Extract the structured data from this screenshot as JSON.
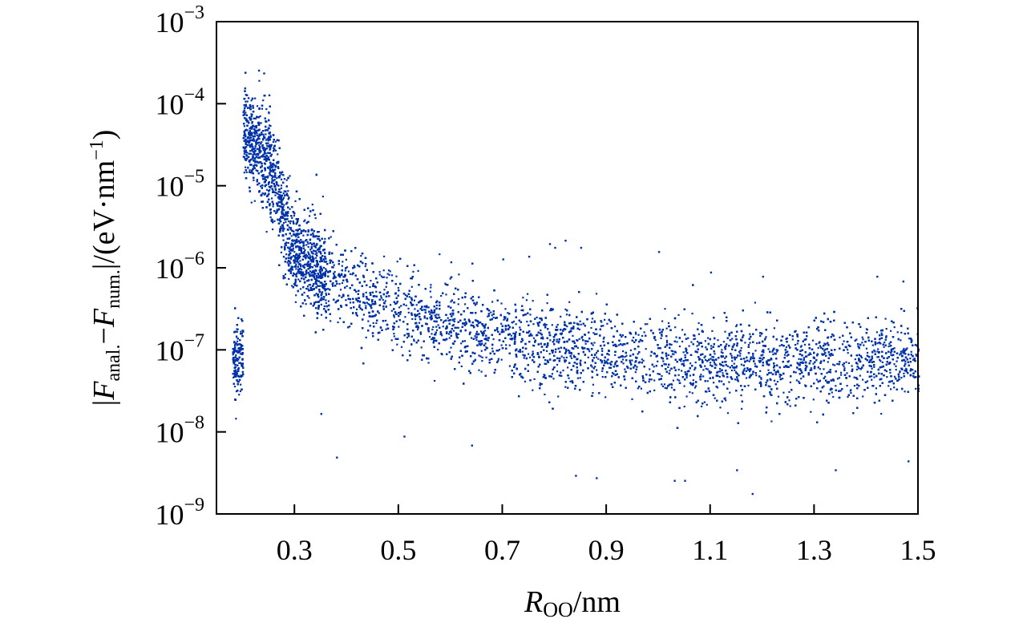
{
  "chart_data": {
    "type": "scatter",
    "title": "",
    "xlabel": {
      "var": "R",
      "sub": "OO",
      "unit": "/nm"
    },
    "ylabel": {
      "bar": "|",
      "f1": "F",
      "sub1": "anal.",
      "minus": "−",
      "f2": "F",
      "sub2": "num.",
      "unit_open": "/(eV·nm",
      "unit_exp": "−1",
      "unit_close": ")"
    },
    "xlim": [
      0.15,
      1.5
    ],
    "ylim": [
      1e-09,
      0.001
    ],
    "yscale": "log",
    "grid": false,
    "legend": "none",
    "marker_color": "#0033aa",
    "x_ticks": [
      "0.3",
      "0.5",
      "0.7",
      "0.9",
      "1.1",
      "1.3",
      "1.5"
    ],
    "y_ticks": [
      {
        "base": "10",
        "exp": "-9"
      },
      {
        "base": "10",
        "exp": "-8"
      },
      {
        "base": "10",
        "exp": "-7"
      },
      {
        "base": "10",
        "exp": "-6"
      },
      {
        "base": "10",
        "exp": "-5"
      },
      {
        "base": "10",
        "exp": "-4"
      },
      {
        "base": "10",
        "exp": "-3"
      }
    ],
    "series": [
      {
        "band": [
          {
            "x": 0.2,
            "median": 5e-05,
            "spread_dex": 0.45
          },
          {
            "x": 0.25,
            "median": 2e-05,
            "spread_dex": 0.55
          },
          {
            "x": 0.3,
            "median": 1.5e-06,
            "spread_dex": 0.5
          },
          {
            "x": 0.4,
            "median": 6e-07,
            "spread_dex": 0.45
          },
          {
            "x": 0.5,
            "median": 3e-07,
            "spread_dex": 0.45
          },
          {
            "x": 0.7,
            "median": 1.4e-07,
            "spread_dex": 0.45
          },
          {
            "x": 0.9,
            "median": 9e-08,
            "spread_dex": 0.45
          },
          {
            "x": 1.1,
            "median": 7e-08,
            "spread_dex": 0.45
          },
          {
            "x": 1.3,
            "median": 7e-08,
            "spread_dex": 0.45
          },
          {
            "x": 1.5,
            "median": 8e-08,
            "spread_dex": 0.4
          }
        ],
        "outliers": [
          [
            0.23,
            0.00026
          ],
          [
            0.24,
            0.00024
          ],
          [
            0.21,
            0.00012
          ],
          [
            0.25,
            0.00013
          ],
          [
            0.35,
            1.7e-08
          ],
          [
            0.38,
            5e-09
          ],
          [
            0.51,
            9e-09
          ],
          [
            0.64,
            7e-09
          ],
          [
            0.79,
            2e-06
          ],
          [
            0.8,
            1.8e-06
          ],
          [
            0.82,
            2.2e-06
          ],
          [
            0.85,
            1.8e-06
          ],
          [
            0.75,
            1.4e-06
          ],
          [
            0.7,
            1.3e-06
          ],
          [
            0.84,
            3e-09
          ],
          [
            0.88,
            2.8e-09
          ],
          [
            1.0,
            1.6e-06
          ],
          [
            1.03,
            2.6e-09
          ],
          [
            1.05,
            2.6e-09
          ],
          [
            1.15,
            3.5e-09
          ],
          [
            1.18,
            1.8e-09
          ],
          [
            1.34,
            3.5e-09
          ],
          [
            1.42,
            8e-07
          ],
          [
            1.47,
            7e-07
          ],
          [
            1.48,
            4.5e-09
          ],
          [
            1.1,
            9e-07
          ],
          [
            1.2,
            8e-07
          ],
          [
            0.6,
            1.2e-06
          ]
        ]
      }
    ]
  }
}
